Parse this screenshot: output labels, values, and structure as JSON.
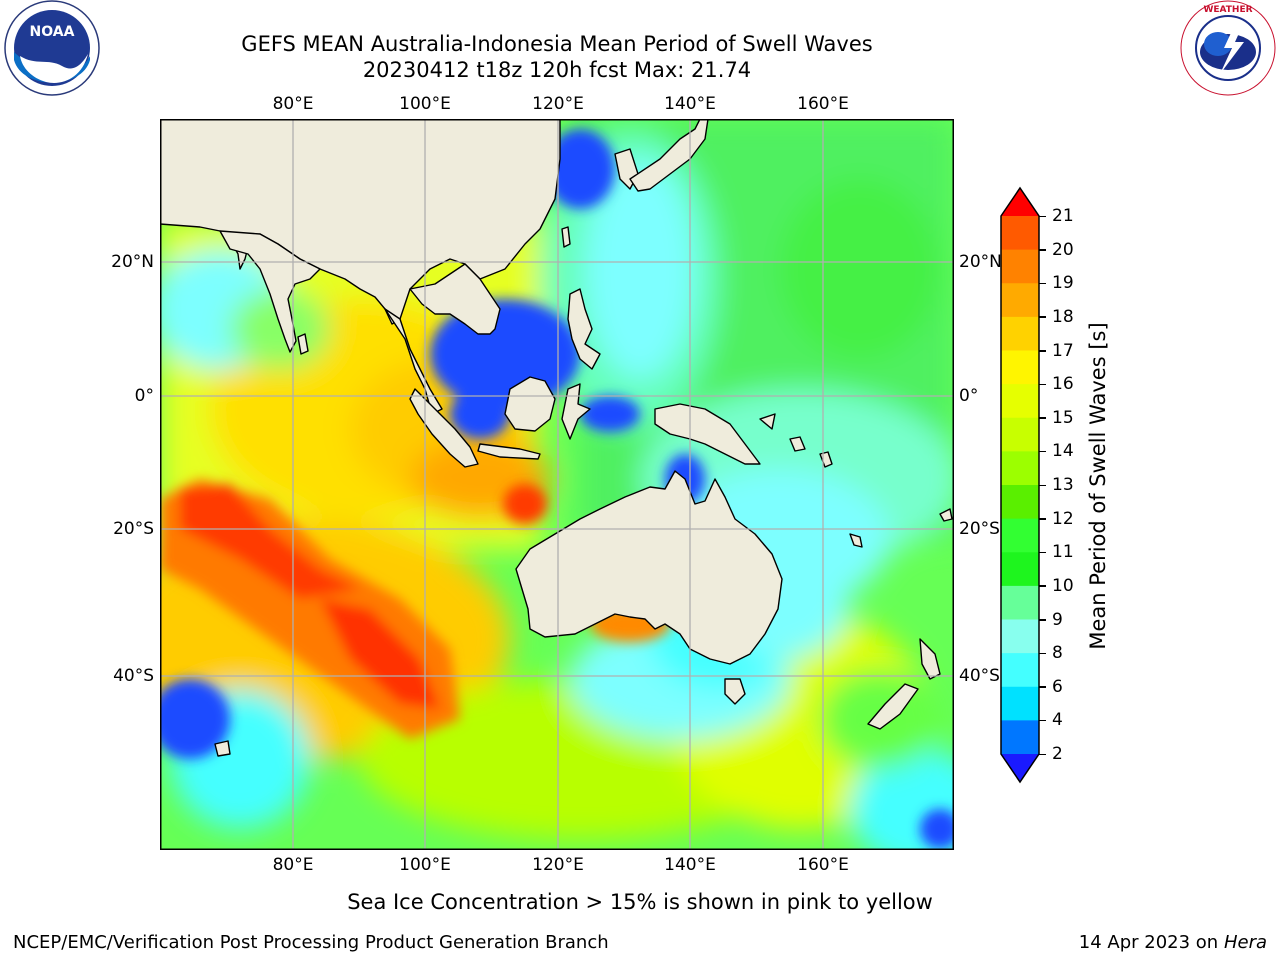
{
  "header": {
    "title_line1": "GEFS MEAN Australia-Indonesia Mean Period of Swell Waves",
    "title_line2": "20230412 t18z 120h fcst   Max: 21.74"
  },
  "logos": {
    "left": {
      "text": "NOAA",
      "ring_text": "NATIONAL OCEANIC AND ATMOSPHERIC ADMINISTRATION · U.S. DEPARTMENT OF COMMERCE"
    },
    "right": {
      "ring_text": "NATIONAL WEATHER SERVICE"
    }
  },
  "map": {
    "lon_ticks": [
      "80°E",
      "100°E",
      "120°E",
      "140°E",
      "160°E"
    ],
    "lat_ticks_left": [
      "20°N",
      "0°",
      "20°S",
      "40°S"
    ],
    "lat_ticks_right": [
      "20°N",
      "0°",
      "20°S",
      "40°S"
    ],
    "land_color": "#efecdc",
    "grid_color": "#b0b0b0"
  },
  "colorbar": {
    "label": "Mean Period of Swell Waves [s]",
    "ticks": [
      "21",
      "20",
      "19",
      "18",
      "17",
      "16",
      "15",
      "14",
      "13",
      "12",
      "11",
      "10",
      "9",
      "8",
      "6",
      "4",
      "2"
    ],
    "colors": [
      "#ff3300",
      "#ff5a00",
      "#ff8200",
      "#ffaa00",
      "#ffd200",
      "#fff500",
      "#e6ff00",
      "#c8ff00",
      "#9cff00",
      "#5aef00",
      "#32ff32",
      "#1ef51e",
      "#66ff99",
      "#88ffee",
      "#44ffff",
      "#00e1ff",
      "#0077ff",
      "#0033ee"
    ],
    "over_color": "#ff0000",
    "under_color": "#1a1aff"
  },
  "footer": {
    "note": "Sea Ice Concentration > 15% is shown in pink to yellow",
    "branch": "NCEP/EMC/Verification Post Processing Product Generation Branch",
    "date": "14 Apr 2023 on",
    "host": "Hera"
  }
}
